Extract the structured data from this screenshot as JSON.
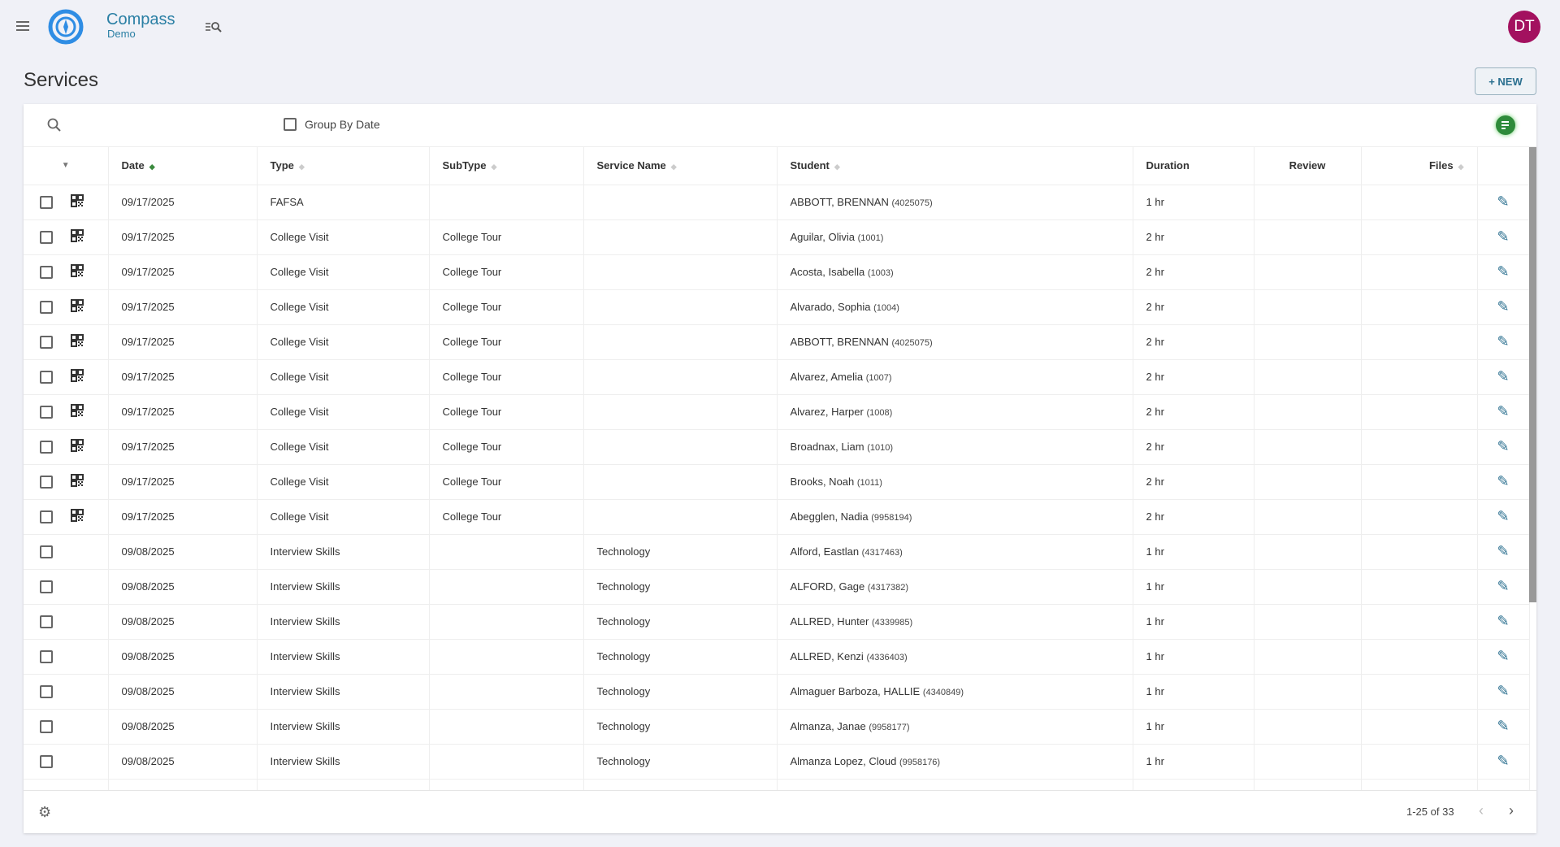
{
  "app": {
    "name": "Compass",
    "subtitle": "Demo",
    "user_initials": "DT",
    "avatar_color": "#a3115f",
    "accent": "#2a7fa4"
  },
  "page": {
    "title": "Services",
    "new_label": "+ NEW"
  },
  "toolbar": {
    "group_by_date": "Group By Date",
    "group_by_date_checked": false
  },
  "columns": [
    "",
    "Date",
    "Type",
    "SubType",
    "Service Name",
    "Student",
    "Duration",
    "Review",
    "Files",
    ""
  ],
  "rows": [
    {
      "qr": true,
      "date": "09/17/2025",
      "type": "FAFSA",
      "subtype": "",
      "service": "",
      "student": "ABBOTT, BRENNAN",
      "sid": "(4025075)",
      "duration": "1 hr"
    },
    {
      "qr": true,
      "date": "09/17/2025",
      "type": "College Visit",
      "subtype": "College Tour",
      "service": "",
      "student": "Aguilar, Olivia",
      "sid": "(1001)",
      "duration": "2 hr"
    },
    {
      "qr": true,
      "date": "09/17/2025",
      "type": "College Visit",
      "subtype": "College Tour",
      "service": "",
      "student": "Acosta, Isabella",
      "sid": "(1003)",
      "duration": "2 hr"
    },
    {
      "qr": true,
      "date": "09/17/2025",
      "type": "College Visit",
      "subtype": "College Tour",
      "service": "",
      "student": "Alvarado, Sophia",
      "sid": "(1004)",
      "duration": "2 hr"
    },
    {
      "qr": true,
      "date": "09/17/2025",
      "type": "College Visit",
      "subtype": "College Tour",
      "service": "",
      "student": "ABBOTT, BRENNAN",
      "sid": "(4025075)",
      "duration": "2 hr"
    },
    {
      "qr": true,
      "date": "09/17/2025",
      "type": "College Visit",
      "subtype": "College Tour",
      "service": "",
      "student": "Alvarez, Amelia",
      "sid": "(1007)",
      "duration": "2 hr"
    },
    {
      "qr": true,
      "date": "09/17/2025",
      "type": "College Visit",
      "subtype": "College Tour",
      "service": "",
      "student": "Alvarez, Harper",
      "sid": "(1008)",
      "duration": "2 hr"
    },
    {
      "qr": true,
      "date": "09/17/2025",
      "type": "College Visit",
      "subtype": "College Tour",
      "service": "",
      "student": "Broadnax, Liam",
      "sid": "(1010)",
      "duration": "2 hr"
    },
    {
      "qr": true,
      "date": "09/17/2025",
      "type": "College Visit",
      "subtype": "College Tour",
      "service": "",
      "student": "Brooks, Noah",
      "sid": "(1011)",
      "duration": "2 hr"
    },
    {
      "qr": true,
      "date": "09/17/2025",
      "type": "College Visit",
      "subtype": "College Tour",
      "service": "",
      "student": "Abegglen, Nadia",
      "sid": "(9958194)",
      "duration": "2 hr"
    },
    {
      "qr": false,
      "date": "09/08/2025",
      "type": "Interview Skills",
      "subtype": "",
      "service": "Technology",
      "student": "Alford, Eastlan",
      "sid": "(4317463)",
      "duration": "1 hr"
    },
    {
      "qr": false,
      "date": "09/08/2025",
      "type": "Interview Skills",
      "subtype": "",
      "service": "Technology",
      "student": "ALFORD, Gage",
      "sid": "(4317382)",
      "duration": "1 hr"
    },
    {
      "qr": false,
      "date": "09/08/2025",
      "type": "Interview Skills",
      "subtype": "",
      "service": "Technology",
      "student": "ALLRED, Hunter",
      "sid": "(4339985)",
      "duration": "1 hr"
    },
    {
      "qr": false,
      "date": "09/08/2025",
      "type": "Interview Skills",
      "subtype": "",
      "service": "Technology",
      "student": "ALLRED, Kenzi",
      "sid": "(4336403)",
      "duration": "1 hr"
    },
    {
      "qr": false,
      "date": "09/08/2025",
      "type": "Interview Skills",
      "subtype": "",
      "service": "Technology",
      "student": "Almaguer Barboza, HALLIE",
      "sid": "(4340849)",
      "duration": "1 hr"
    },
    {
      "qr": false,
      "date": "09/08/2025",
      "type": "Interview Skills",
      "subtype": "",
      "service": "Technology",
      "student": "Almanza, Janae",
      "sid": "(9958177)",
      "duration": "1 hr"
    },
    {
      "qr": false,
      "date": "09/08/2025",
      "type": "Interview Skills",
      "subtype": "",
      "service": "Technology",
      "student": "Almanza Lopez, Cloud",
      "sid": "(9958176)",
      "duration": "1 hr"
    }
  ],
  "footer": {
    "pagination": "1-25 of 33"
  }
}
